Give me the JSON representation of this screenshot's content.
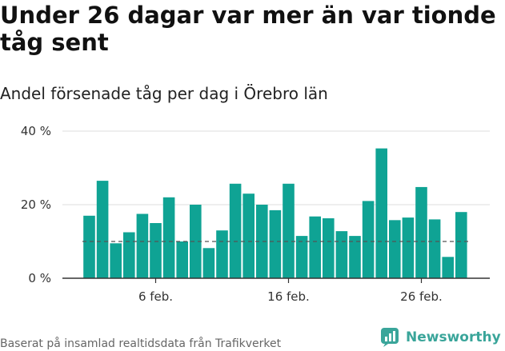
{
  "header": {
    "title": "Under 26 dagar var mer än var tionde tåg sent",
    "subtitle": "Andel försenade tåg per dag i Örebro län"
  },
  "footer": {
    "source": "Baserat på insamlad realtidsdata från Trafikverket",
    "brand": "Newsworthy"
  },
  "colors": {
    "bar": "#0fa394",
    "reference_line": "#555555",
    "axis": "#333333",
    "brand": "#3aa59a"
  },
  "chart_data": {
    "type": "bar",
    "x": [
      1,
      2,
      3,
      4,
      5,
      6,
      7,
      8,
      9,
      10,
      11,
      12,
      13,
      14,
      15,
      16,
      17,
      18,
      19,
      20,
      21,
      22,
      23,
      24,
      25,
      26,
      27,
      28,
      29
    ],
    "x_unit": "feb.",
    "values": [
      17,
      26.5,
      9.5,
      12.5,
      17.5,
      15,
      22,
      10,
      20,
      8.2,
      13,
      25.7,
      23,
      20,
      18.5,
      25.7,
      11.5,
      16.8,
      16.3,
      12.8,
      11.5,
      21,
      35.3,
      15.8,
      16.5,
      24.8,
      16,
      5.8,
      18
    ],
    "ylim": [
      0,
      40
    ],
    "yticks": [
      0,
      20,
      40
    ],
    "ytick_labels": [
      "0 %",
      "20 %",
      "40 %"
    ],
    "xticks": [
      6,
      16,
      26
    ],
    "xtick_labels": [
      "6 feb.",
      "16 feb.",
      "26 feb."
    ],
    "reference_line": 10,
    "grid": true,
    "title": "Under 26 dagar var mer än var tionde tåg sent",
    "xlabel": "",
    "ylabel": ""
  }
}
